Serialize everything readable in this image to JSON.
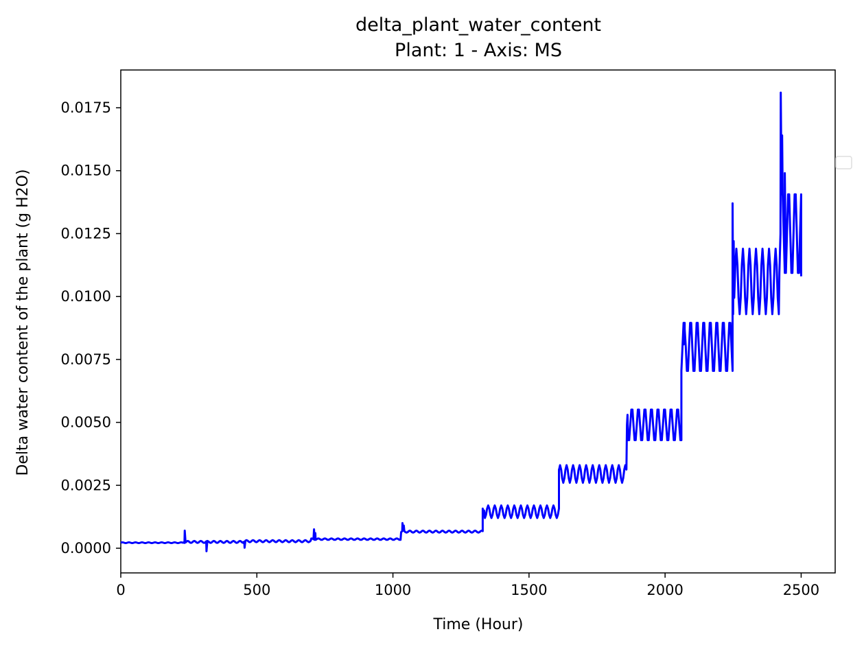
{
  "chart_data": {
    "type": "line",
    "title": "delta_plant_water_content",
    "subtitle": "Plant: 1 - Axis: MS",
    "xlabel": "Time (Hour)",
    "ylabel": "Delta water content of the plant (g H2O)",
    "xlim": [
      0,
      2625
    ],
    "ylim": [
      -0.00098,
      0.019
    ],
    "xticks": [
      0,
      500,
      1000,
      1500,
      2000,
      2500
    ],
    "xtick_labels": [
      "0",
      "500",
      "1000",
      "1500",
      "2000",
      "2500"
    ],
    "yticks": [
      0,
      0.0025,
      0.005,
      0.0075,
      0.01,
      0.0125,
      0.015,
      0.0175
    ],
    "ytick_labels": [
      "0.0000",
      "0.0025",
      "0.0050",
      "0.0075",
      "0.0100",
      "0.0125",
      "0.0150",
      "0.0175"
    ],
    "grid": false,
    "legend": "right (empty)",
    "series": [
      {
        "color": "#0000ff",
        "segments": [
          {
            "start": 0,
            "end": 230,
            "base": 0.00022,
            "amp": 3e-05,
            "step": 0.0002
          },
          {
            "start": 230,
            "end": 450,
            "base": 0.00025,
            "amp": 8e-05,
            "step": 0.0002
          },
          {
            "start": 450,
            "end": 700,
            "base": 0.00028,
            "amp": 8e-05,
            "step": 0.0002
          },
          {
            "start": 700,
            "end": 1030,
            "base": 0.00036,
            "amp": 6e-05,
            "step": 0.0002
          },
          {
            "start": 1030,
            "end": 1330,
            "base": 0.00066,
            "amp": 8e-05,
            "step": 0.0002
          },
          {
            "start": 1330,
            "end": 1610,
            "base": 0.00145,
            "amp": 0.00025,
            "step": 0.0002
          },
          {
            "start": 1610,
            "end": 1860,
            "base": 0.00295,
            "amp": 0.00035,
            "step": 0.0002
          },
          {
            "start": 1860,
            "end": 2060,
            "base": 0.0049,
            "amp": 0.0007,
            "step": 0.0002
          },
          {
            "start": 2060,
            "end": 2250,
            "base": 0.008,
            "amp": 0.0011,
            "step": 0.0002
          },
          {
            "start": 2250,
            "end": 2420,
            "base": 0.0106,
            "amp": 0.0013,
            "step": 0.0002
          },
          {
            "start": 2420,
            "end": 2500,
            "base": 0.0125,
            "amp": 0.0018,
            "step": 0.0002
          }
        ],
        "spikes": [
          [
            235,
            0.0007
          ],
          [
            315,
            -0.00012
          ],
          [
            455,
            2e-05
          ],
          [
            710,
            0.00075
          ],
          [
            715,
            0.0006
          ],
          [
            1035,
            0.001
          ],
          [
            1040,
            0.0009
          ],
          [
            1335,
            0.0015
          ],
          [
            1610,
            0.0031
          ],
          [
            1862,
            0.0053
          ],
          [
            2068,
            0.0081
          ],
          [
            2072,
            0.0087
          ],
          [
            2248,
            0.0137
          ],
          [
            2252,
            0.0122
          ],
          [
            2425,
            0.0181
          ],
          [
            2430,
            0.0164
          ],
          [
            2440,
            0.0149
          ],
          [
            2500,
            0.0108
          ]
        ]
      }
    ]
  }
}
